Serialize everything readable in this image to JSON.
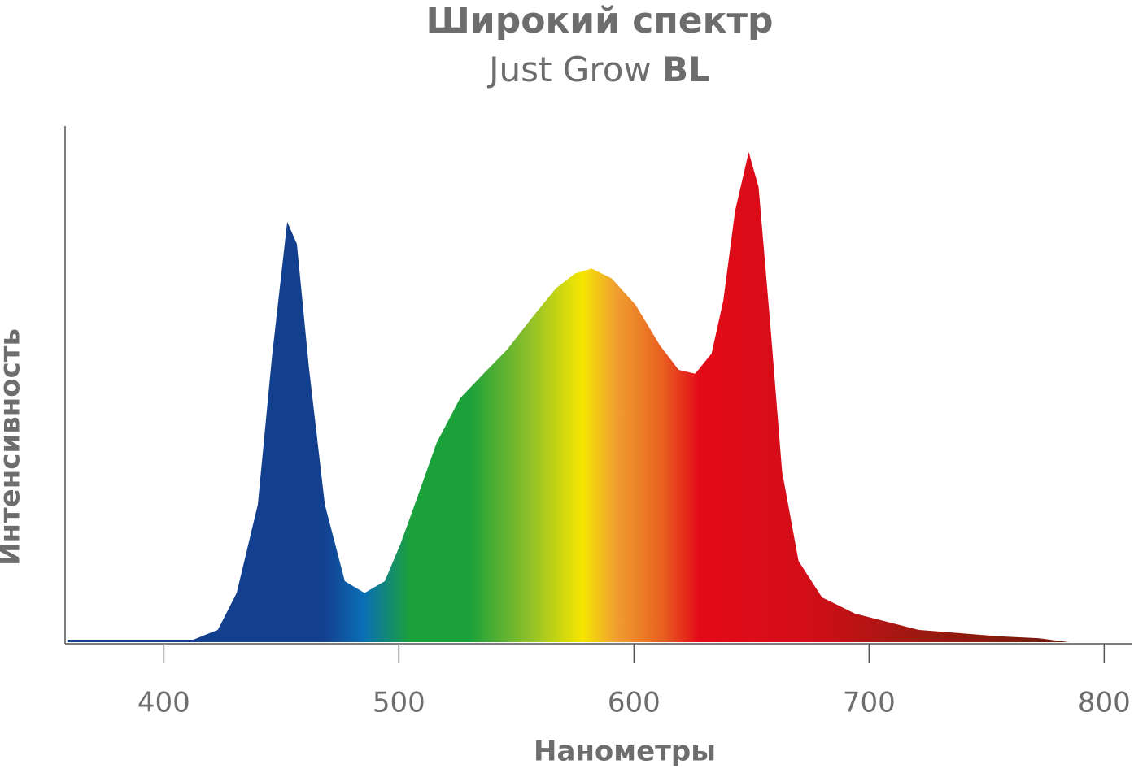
{
  "chart_data": {
    "type": "area",
    "title": "Широкий спектр",
    "subtitle": "Just Grow",
    "subtitle_emphasis": "BL",
    "x_label": "Нанометры",
    "y_label": "Интенсивность",
    "x": [
      359,
      412.5,
      423,
      431,
      440,
      446,
      452.5,
      456.6,
      461.7,
      468.5,
      477,
      485.4,
      494,
      500.7,
      507.5,
      516,
      526,
      536,
      546,
      556.6,
      566.8,
      575,
      582,
      590.5,
      600.7,
      611,
      619,
      626,
      633,
      638,
      643,
      648.8,
      653,
      658,
      663,
      670,
      680,
      694,
      721,
      755,
      772,
      785
    ],
    "values": [
      0.5,
      0.5,
      2.5,
      10,
      28,
      58,
      85.5,
      81,
      56,
      28,
      12.4,
      10,
      12.4,
      20,
      29,
      40.5,
      49.6,
      54.6,
      59.5,
      66,
      72,
      75,
      76,
      74,
      68.6,
      60.4,
      55.4,
      54.6,
      58.7,
      69.5,
      87.7,
      99.7,
      92.6,
      64.5,
      34.7,
      16.5,
      9.1,
      5.8,
      2.5,
      1.2,
      0.8,
      0
    ],
    "gradient": [
      {
        "x": 360,
        "color": "#133f8f"
      },
      {
        "x": 468,
        "color": "#133f8f"
      },
      {
        "x": 485,
        "color": "#0a6fb5"
      },
      {
        "x": 505,
        "color": "#1ba13a"
      },
      {
        "x": 530,
        "color": "#1ba13a"
      },
      {
        "x": 555,
        "color": "#8dbf2a"
      },
      {
        "x": 578,
        "color": "#f5e600"
      },
      {
        "x": 592,
        "color": "#f0a030"
      },
      {
        "x": 612,
        "color": "#e86020"
      },
      {
        "x": 628,
        "color": "#e30a17"
      },
      {
        "x": 672,
        "color": "#d40d18"
      },
      {
        "x": 722,
        "color": "#9b1a10"
      },
      {
        "x": 790,
        "color": "#6e1a0a"
      }
    ],
    "xlim": [
      358,
      812
    ],
    "ylim": [
      0,
      105
    ],
    "xticks": [
      400,
      500,
      600,
      700,
      800
    ],
    "grid": false
  }
}
